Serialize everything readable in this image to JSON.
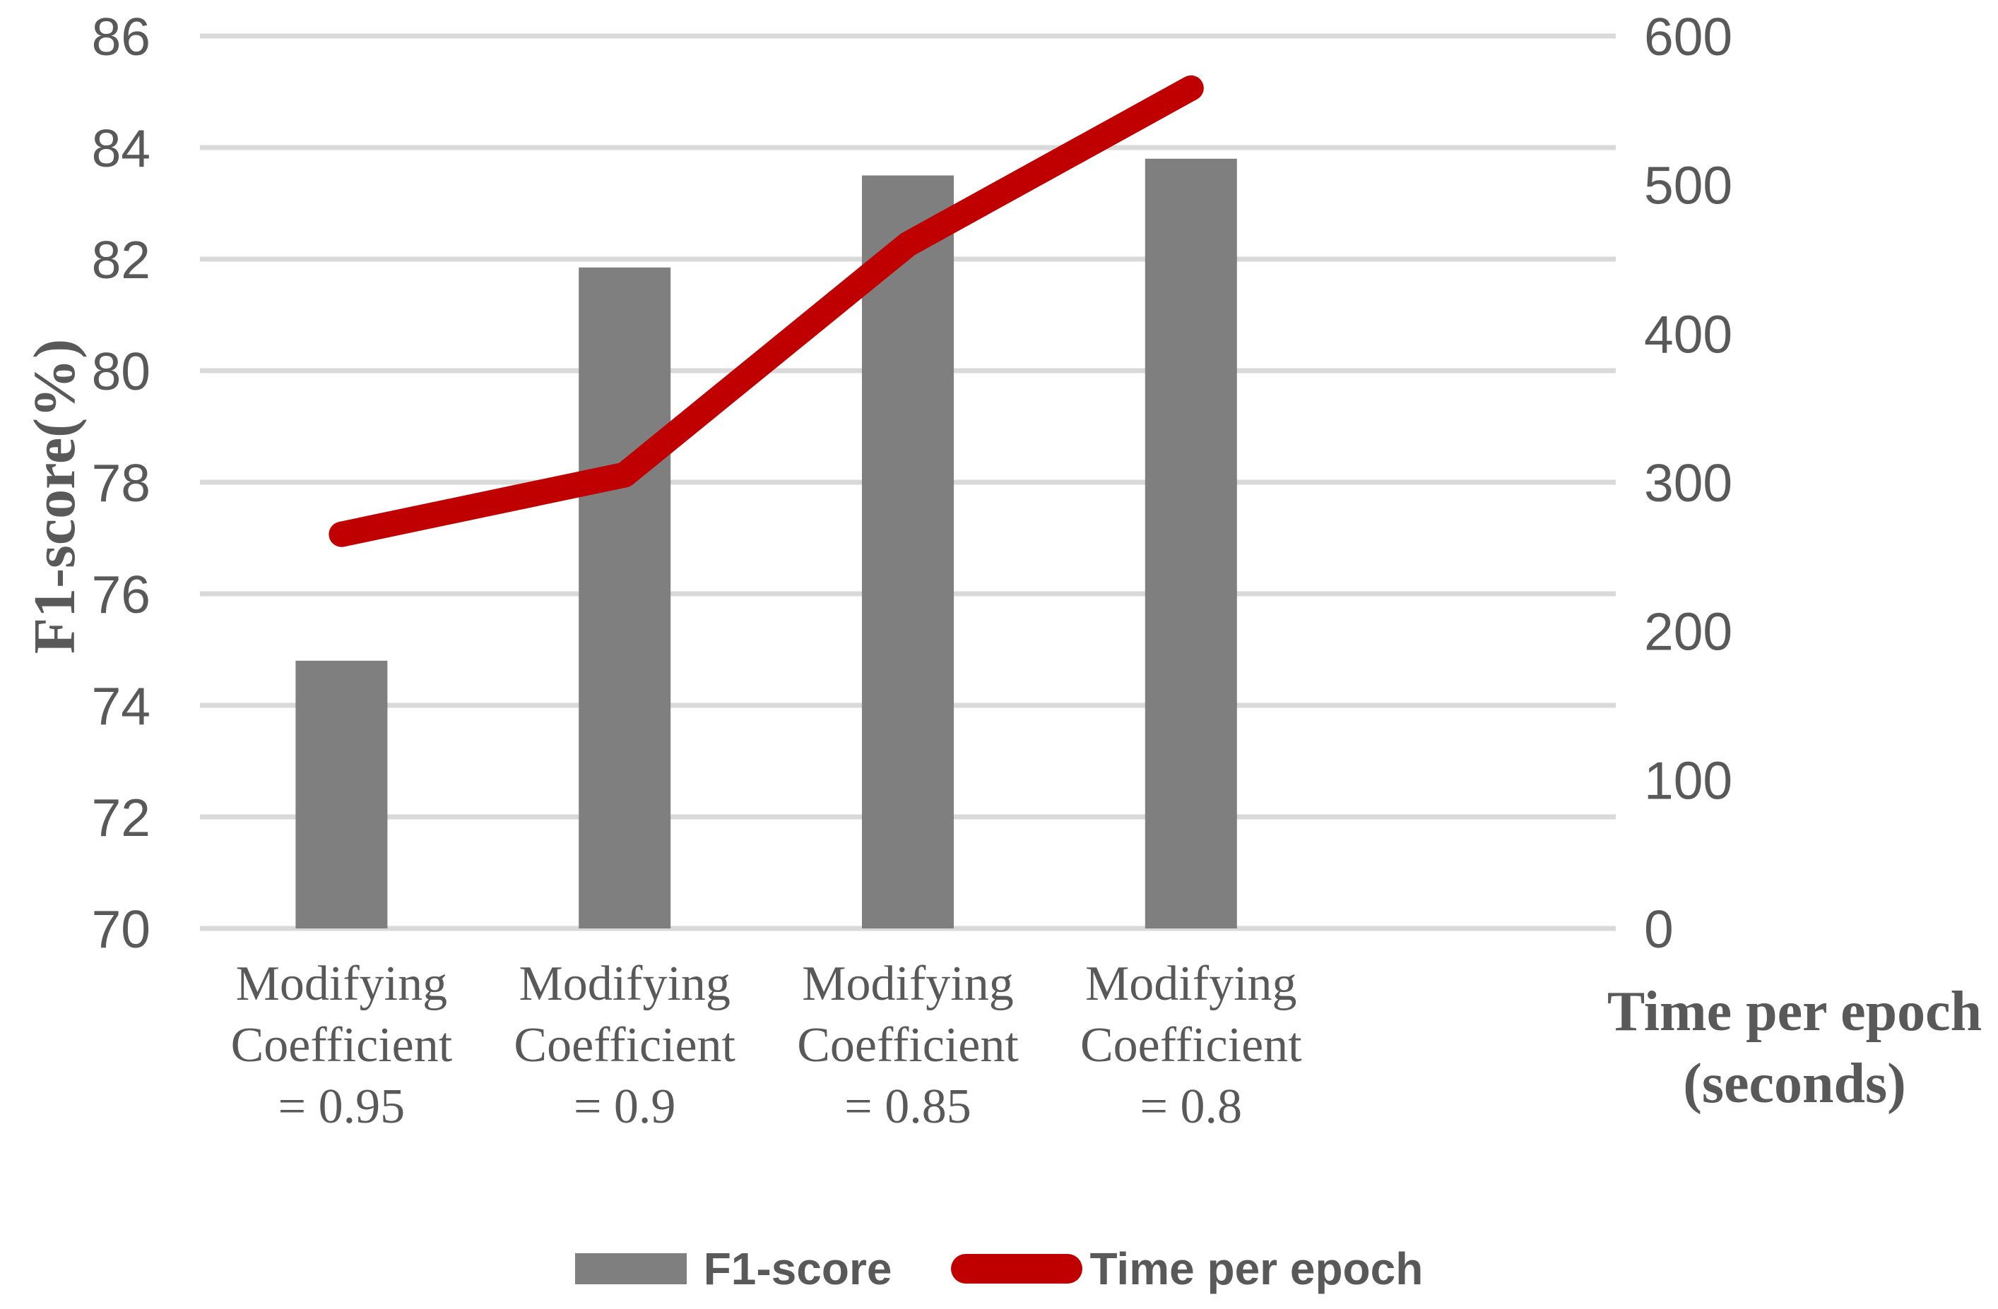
{
  "chart_data": {
    "type": "combo-bar-line",
    "categories": [
      [
        "Modifying",
        "Coefficient",
        "= 0.95"
      ],
      [
        "Modifying",
        "Coefficient",
        "= 0.9"
      ],
      [
        "Modifying",
        "Coefficient",
        "= 0.85"
      ],
      [
        "Modifying",
        "Coefficient",
        "= 0.8"
      ]
    ],
    "series": [
      {
        "name": "F1-score",
        "type": "bar",
        "axis": "left",
        "color": "#7F7F7F",
        "values": [
          74.8,
          81.85,
          83.5,
          83.8
        ]
      },
      {
        "name": "Time per epoch",
        "type": "line",
        "axis": "right",
        "color": "#C00000",
        "values": [
          265,
          305,
          460,
          565
        ]
      }
    ],
    "left_axis": {
      "title": "F1-score(%)",
      "min": 70,
      "max": 86,
      "step": 2
    },
    "right_axis": {
      "title_lines": [
        "Time per epoch",
        "(seconds)"
      ],
      "min": 0,
      "max": 600,
      "step": 100
    },
    "grid": true,
    "legend_position": "bottom",
    "x_slots": 5
  },
  "colors": {
    "background": "#FFFFFF",
    "gridline": "#D9D9D9",
    "text": "#595959",
    "bar": "#7F7F7F",
    "line": "#C00000"
  }
}
